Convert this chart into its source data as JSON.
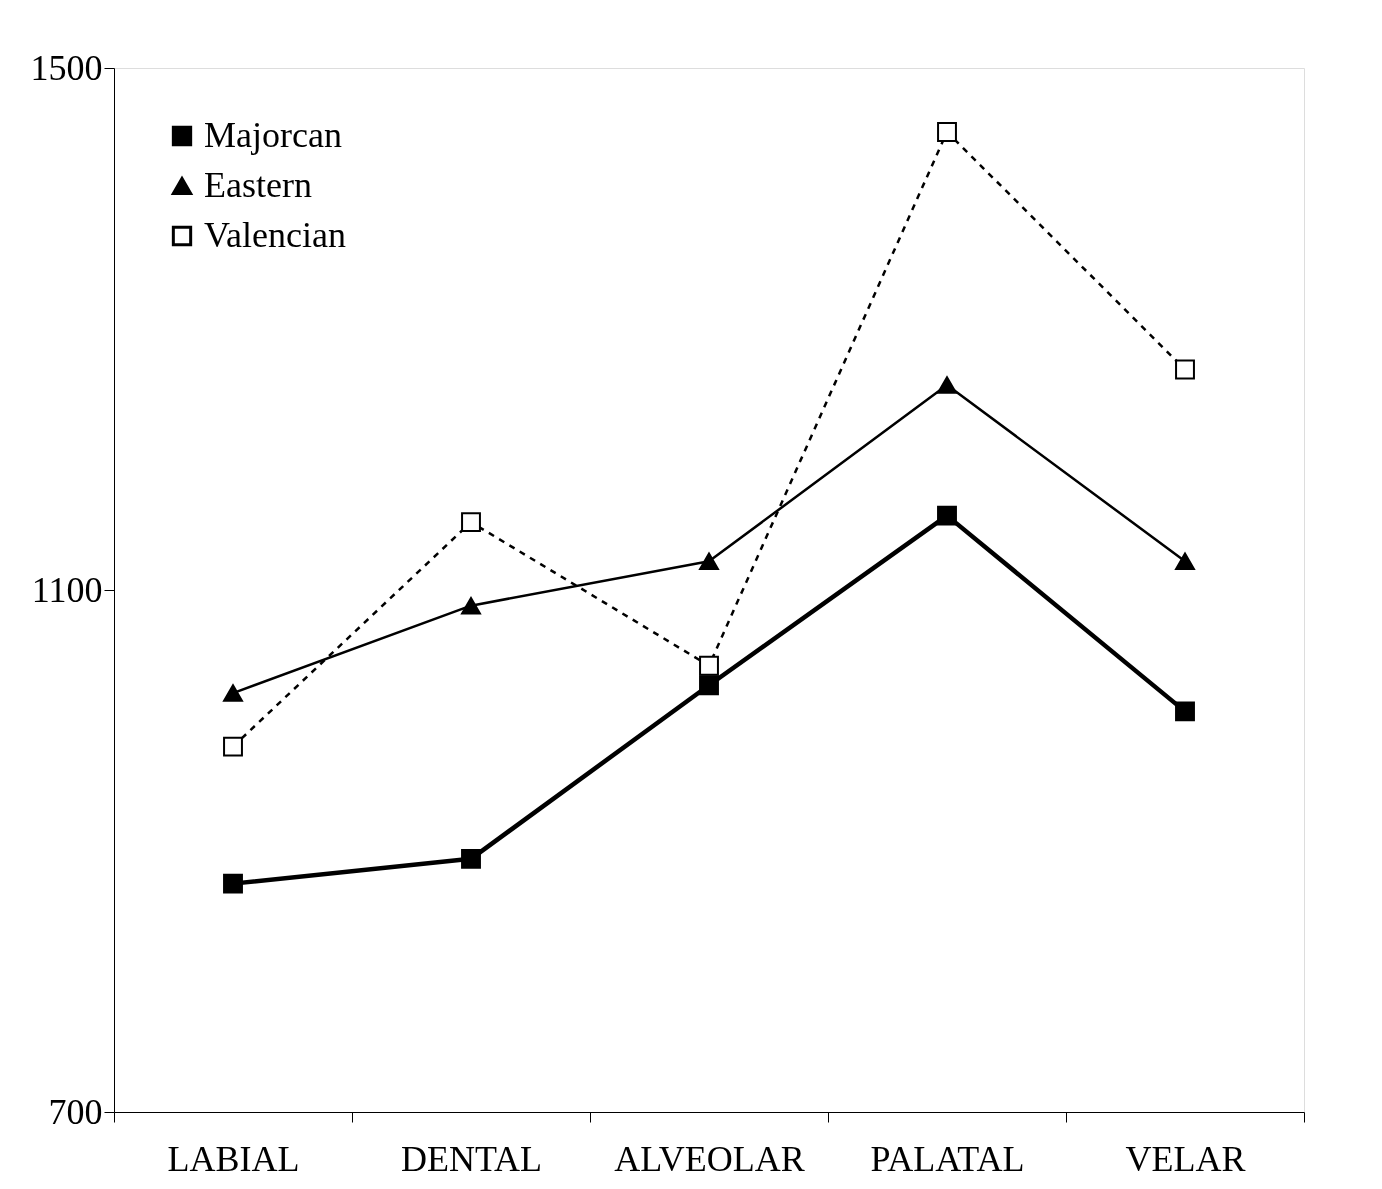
{
  "chart_data": {
    "type": "line",
    "categories": [
      "LABIAL",
      "DENTAL",
      "ALVEOLAR",
      "PALATAL",
      "VELAR"
    ],
    "series": [
      {
        "name": "Majorcan",
        "color": "#000000",
        "marker": "square",
        "line_style": "solid",
        "values": [
          875,
          894,
          1027,
          1157,
          1007
        ]
      },
      {
        "name": "Eastern",
        "color": "#000000",
        "marker": "triangle",
        "line_style": "solid",
        "values": [
          1021,
          1088,
          1122,
          1257,
          1122
        ]
      },
      {
        "name": "Valencian",
        "color": "#000000",
        "marker": "square",
        "line_style": "dashed",
        "values": [
          980,
          1152,
          1042,
          1451,
          1269
        ]
      }
    ],
    "ylim": [
      700,
      1500
    ],
    "yticks": [
      700,
      1100,
      1500
    ],
    "grid": false,
    "legend": "top left"
  }
}
